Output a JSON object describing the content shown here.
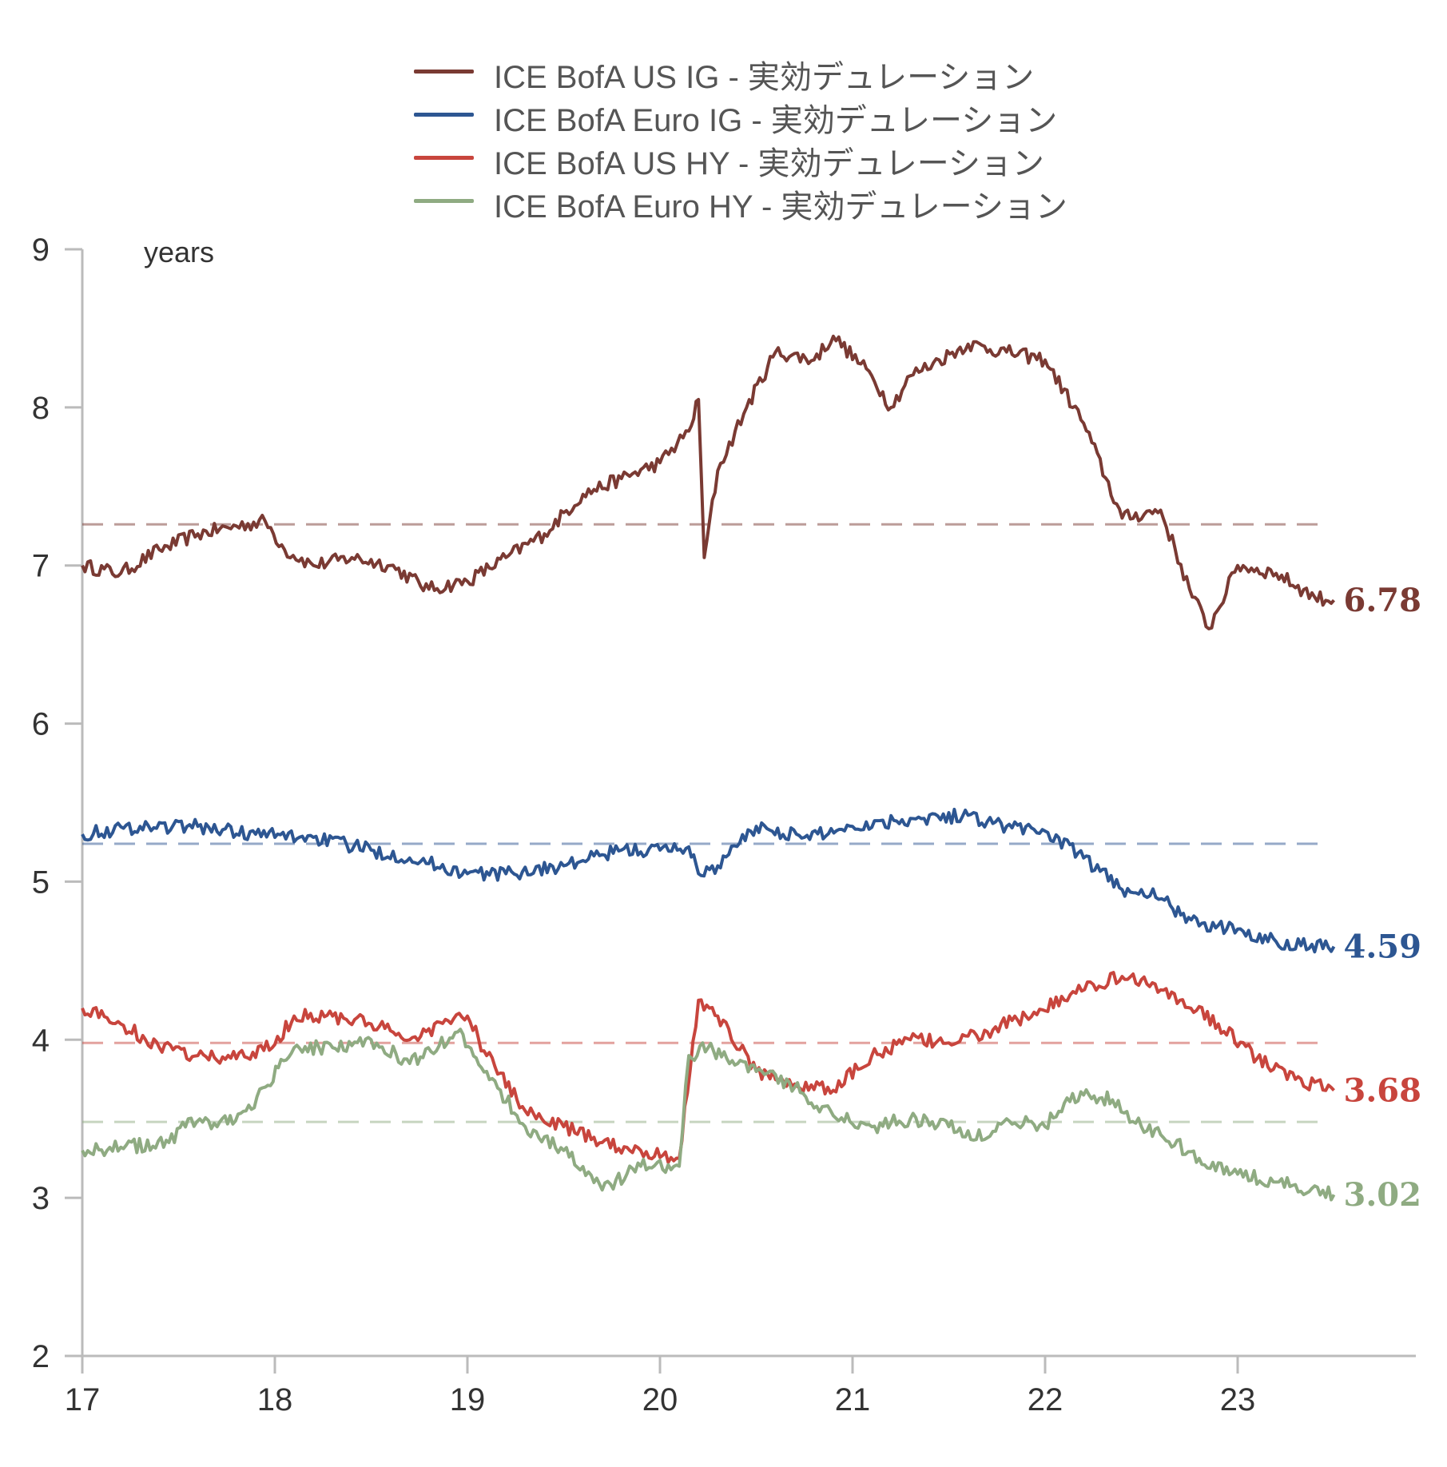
{
  "chart_data": {
    "type": "line",
    "unit_label": "years",
    "ylim": [
      2,
      9
    ],
    "yticks": [
      2,
      3,
      4,
      5,
      6,
      7,
      8,
      9
    ],
    "xlim": [
      17,
      24
    ],
    "xticks": [
      17,
      18,
      19,
      20,
      21,
      22,
      23
    ],
    "grid": false,
    "legend_position": "top-center",
    "series": [
      {
        "name": "ICE BofA US IG - 実効デュレーション",
        "color": "#7a3a33",
        "last_label": "6.78",
        "average": 7.26,
        "x": [
          17.0,
          17.2,
          17.4,
          17.6,
          17.8,
          17.95,
          18.05,
          18.2,
          18.4,
          18.6,
          18.8,
          19.0,
          19.2,
          19.4,
          19.6,
          19.8,
          20.0,
          20.15,
          20.2,
          20.23,
          20.3,
          20.45,
          20.6,
          20.8,
          20.9,
          21.1,
          21.2,
          21.3,
          21.45,
          21.6,
          21.8,
          22.0,
          22.2,
          22.4,
          22.6,
          22.75,
          22.85,
          23.0,
          23.2,
          23.4,
          23.5
        ],
        "y": [
          7.0,
          6.95,
          7.1,
          7.2,
          7.25,
          7.28,
          7.1,
          7.0,
          7.05,
          7.0,
          6.85,
          6.9,
          7.05,
          7.2,
          7.45,
          7.55,
          7.65,
          7.85,
          8.05,
          7.05,
          7.6,
          8.0,
          8.35,
          8.3,
          8.45,
          8.2,
          8.0,
          8.2,
          8.3,
          8.4,
          8.35,
          8.3,
          7.9,
          7.3,
          7.35,
          6.85,
          6.6,
          7.0,
          6.95,
          6.8,
          6.78
        ]
      },
      {
        "name": "ICE BofA Euro IG -  実効デュレーション",
        "color": "#2d5692",
        "last_label": "4.59",
        "average": 5.24,
        "x": [
          17.0,
          17.3,
          17.6,
          17.9,
          18.2,
          18.5,
          18.7,
          19.0,
          19.2,
          19.5,
          19.8,
          20.0,
          20.15,
          20.2,
          20.3,
          20.5,
          20.75,
          21.0,
          21.3,
          21.6,
          21.8,
          22.0,
          22.2,
          22.4,
          22.5,
          22.65,
          22.8,
          23.0,
          23.2,
          23.5
        ],
        "y": [
          5.3,
          5.35,
          5.35,
          5.3,
          5.28,
          5.2,
          5.15,
          5.05,
          5.05,
          5.1,
          5.2,
          5.2,
          5.22,
          5.05,
          5.1,
          5.35,
          5.28,
          5.35,
          5.4,
          5.42,
          5.35,
          5.32,
          5.15,
          4.95,
          4.95,
          4.85,
          4.72,
          4.7,
          4.62,
          4.59
        ]
      },
      {
        "name": "ICE BofA US HY - 実効デュレーション",
        "color": "#c8453d",
        "last_label": "3.68",
        "average": 3.98,
        "x": [
          17.0,
          17.2,
          17.4,
          17.6,
          17.8,
          18.0,
          18.1,
          18.3,
          18.5,
          18.7,
          18.9,
          19.0,
          19.1,
          19.3,
          19.5,
          19.7,
          19.9,
          20.1,
          20.2,
          20.3,
          20.5,
          20.7,
          20.9,
          21.1,
          21.3,
          21.5,
          21.7,
          21.9,
          22.1,
          22.25,
          22.4,
          22.5,
          22.7,
          22.9,
          23.1,
          23.3,
          23.5
        ],
        "y": [
          4.2,
          4.1,
          3.95,
          3.9,
          3.88,
          3.97,
          4.15,
          4.15,
          4.1,
          4.0,
          4.12,
          4.15,
          3.9,
          3.55,
          3.45,
          3.35,
          3.3,
          3.25,
          4.25,
          4.15,
          3.8,
          3.72,
          3.68,
          3.9,
          4.0,
          3.98,
          4.05,
          4.15,
          4.25,
          4.35,
          4.4,
          4.38,
          4.25,
          4.1,
          3.88,
          3.75,
          3.68
        ]
      },
      {
        "name": "ICE BofA Euro HY -  実効デュレーション",
        "color": "#8fab82",
        "last_label": "3.02",
        "average": 3.48,
        "x": [
          17.0,
          17.2,
          17.45,
          17.55,
          17.7,
          17.85,
          17.95,
          18.1,
          18.3,
          18.5,
          18.7,
          18.95,
          19.1,
          19.3,
          19.5,
          19.7,
          19.9,
          20.1,
          20.15,
          20.25,
          20.5,
          20.7,
          20.9,
          21.1,
          21.3,
          21.5,
          21.7,
          21.8,
          22.0,
          22.1,
          22.2,
          22.35,
          22.5,
          22.6,
          22.8,
          23.0,
          23.2,
          23.5
        ],
        "y": [
          3.3,
          3.32,
          3.35,
          3.5,
          3.45,
          3.55,
          3.7,
          3.95,
          3.95,
          4.0,
          3.85,
          4.05,
          3.8,
          3.45,
          3.3,
          3.05,
          3.2,
          3.2,
          3.9,
          3.95,
          3.8,
          3.7,
          3.52,
          3.45,
          3.5,
          3.45,
          3.38,
          3.5,
          3.45,
          3.6,
          3.65,
          3.62,
          3.45,
          3.4,
          3.25,
          3.15,
          3.1,
          3.02
        ]
      }
    ]
  }
}
